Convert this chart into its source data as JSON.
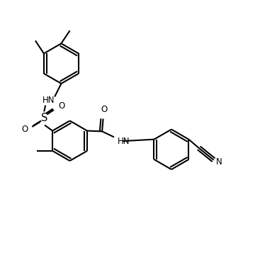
{
  "bg_color": "#ffffff",
  "line_color": "#000000",
  "bond_lw": 1.5,
  "font_size": 8.5,
  "figsize": [
    3.91,
    3.57
  ],
  "dpi": 100,
  "xlim": [
    0,
    9.5
  ],
  "ylim": [
    0,
    8.7
  ]
}
